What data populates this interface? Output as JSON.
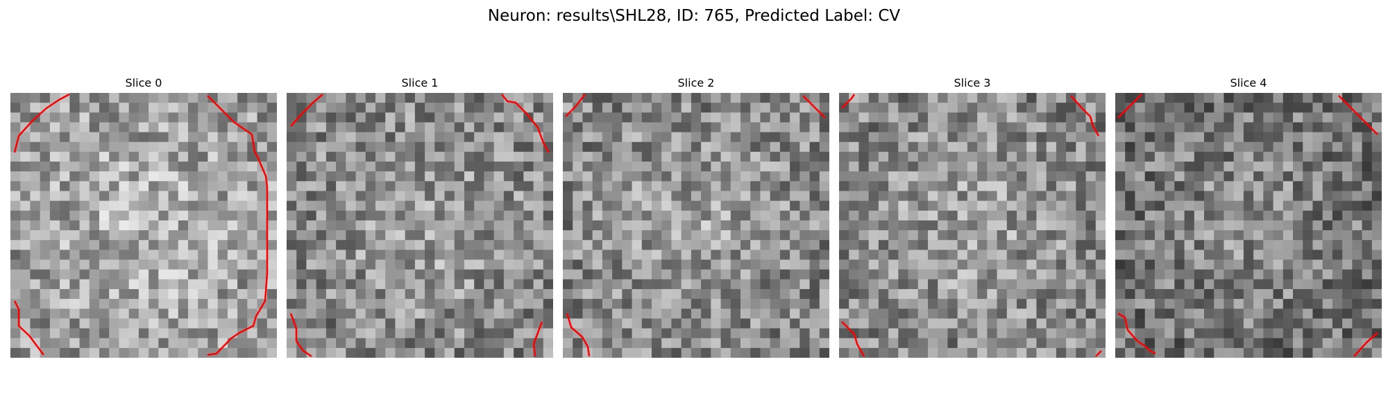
{
  "figure": {
    "title": "Neuron: results\\SHL28, ID: 765, Predicted Label: CV"
  },
  "style": {
    "contour_color": "#ff0000",
    "colormap": "gray"
  },
  "slices": [
    {
      "title": "Slice 0",
      "brightness": "bright",
      "seed": 11
    },
    {
      "title": "Slice 1",
      "brightness": "medium",
      "seed": 23
    },
    {
      "title": "Slice 2",
      "brightness": "medium",
      "seed": 37
    },
    {
      "title": "Slice 3",
      "brightness": "medium",
      "seed": 41
    },
    {
      "title": "Slice 4",
      "brightness": "dark",
      "seed": 53
    }
  ]
}
